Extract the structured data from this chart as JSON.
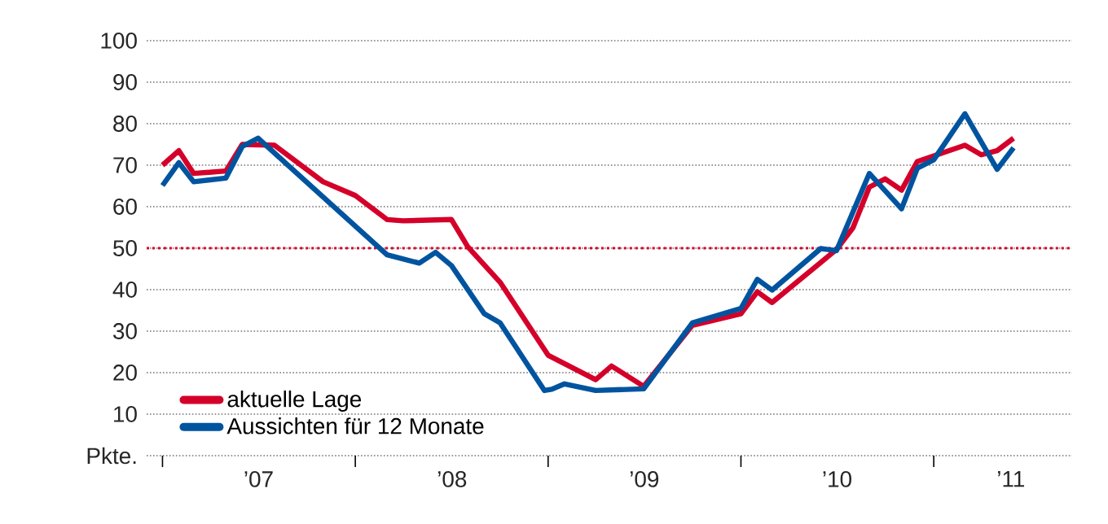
{
  "chart_data": {
    "type": "line",
    "xlim": [
      "2006-12-02",
      "2011-09-20"
    ],
    "xticks": [
      {
        "value": "2007-01-01",
        "label": null
      },
      {
        "value": "2007-07-02",
        "label": "’07"
      },
      {
        "value": "2008-01-01",
        "label": null
      },
      {
        "value": "2008-07-02",
        "label": "’08"
      },
      {
        "value": "2009-01-01",
        "label": null
      },
      {
        "value": "2009-07-02",
        "label": "’09"
      },
      {
        "value": "2010-01-01",
        "label": null
      },
      {
        "value": "2010-07-02",
        "label": "’10"
      },
      {
        "value": "2011-01-01",
        "label": null
      },
      {
        "value": "2011-05-27",
        "label": "’11"
      }
    ],
    "ylim": [
      0,
      100
    ],
    "yticks": [
      {
        "value": 0,
        "label": "Pkte."
      },
      10,
      20,
      30,
      40,
      50,
      60,
      70,
      80,
      90,
      100
    ],
    "grid": "y",
    "legend": "bottom left",
    "line_style": "solid",
    "marker": "none",
    "ref_lines": [
      {
        "axis": "y",
        "value": 50,
        "color": "#d4002a",
        "line_style": "dotted"
      }
    ],
    "series": [
      {
        "name": "aktuelle Lage",
        "color": "#d4002a",
        "x": [
          "2007-01",
          "2007-02",
          "2007-03",
          "2007-05",
          "2007-06",
          "2007-08",
          "2007-11",
          "2008-01",
          "2008-03",
          "2008-04",
          "2008-07",
          "2008-08",
          "2008-10",
          "2009-01",
          "2009-04",
          "2009-05",
          "2009-07",
          "2009-10",
          "2010-01",
          "2010-02",
          "2010-03",
          "2010-07",
          "2010-08",
          "2010-09",
          "2010-10",
          "2010-11",
          "2010-12",
          "2011-03",
          "2011-04",
          "2011-05",
          "2011-06"
        ],
        "values": [
          70,
          73.5,
          68,
          68.6,
          75,
          74.8,
          66,
          62.7,
          56.9,
          56.6,
          56.9,
          50.3,
          41.8,
          24.2,
          18.3,
          21.6,
          16.7,
          31.4,
          34.2,
          39.5,
          36.9,
          49.7,
          54.9,
          64.7,
          66.7,
          64,
          70.9,
          74.8,
          72.5,
          73.5,
          76.5
        ]
      },
      {
        "name": "Aussichten für 12 Monate",
        "color": "#00549f",
        "x": [
          "2007-01",
          "2007-02",
          "2007-03",
          "2007-05",
          "2007-06",
          "2007-07",
          "2008-03",
          "2008-05",
          "2008-06",
          "2008-07",
          "2008-09",
          "2008-10",
          "2008-12-24",
          "2009-01-08",
          "2009-02",
          "2009-04",
          "2009-07",
          "2009-10",
          "2010-01",
          "2010-02",
          "2010-03",
          "2010-06",
          "2010-07",
          "2010-09",
          "2010-11",
          "2010-12",
          "2011-01",
          "2011-03",
          "2011-05",
          "2011-06"
        ],
        "values": [
          65.1,
          70.6,
          66,
          66.9,
          74.5,
          76.5,
          48.4,
          46.4,
          49,
          45.8,
          34.2,
          32,
          15.7,
          16,
          17.3,
          15.7,
          16.1,
          32,
          35.5,
          42.5,
          39.9,
          49.9,
          49.4,
          68,
          59.5,
          69.3,
          71.3,
          82.4,
          69,
          74.2
        ]
      }
    ]
  }
}
